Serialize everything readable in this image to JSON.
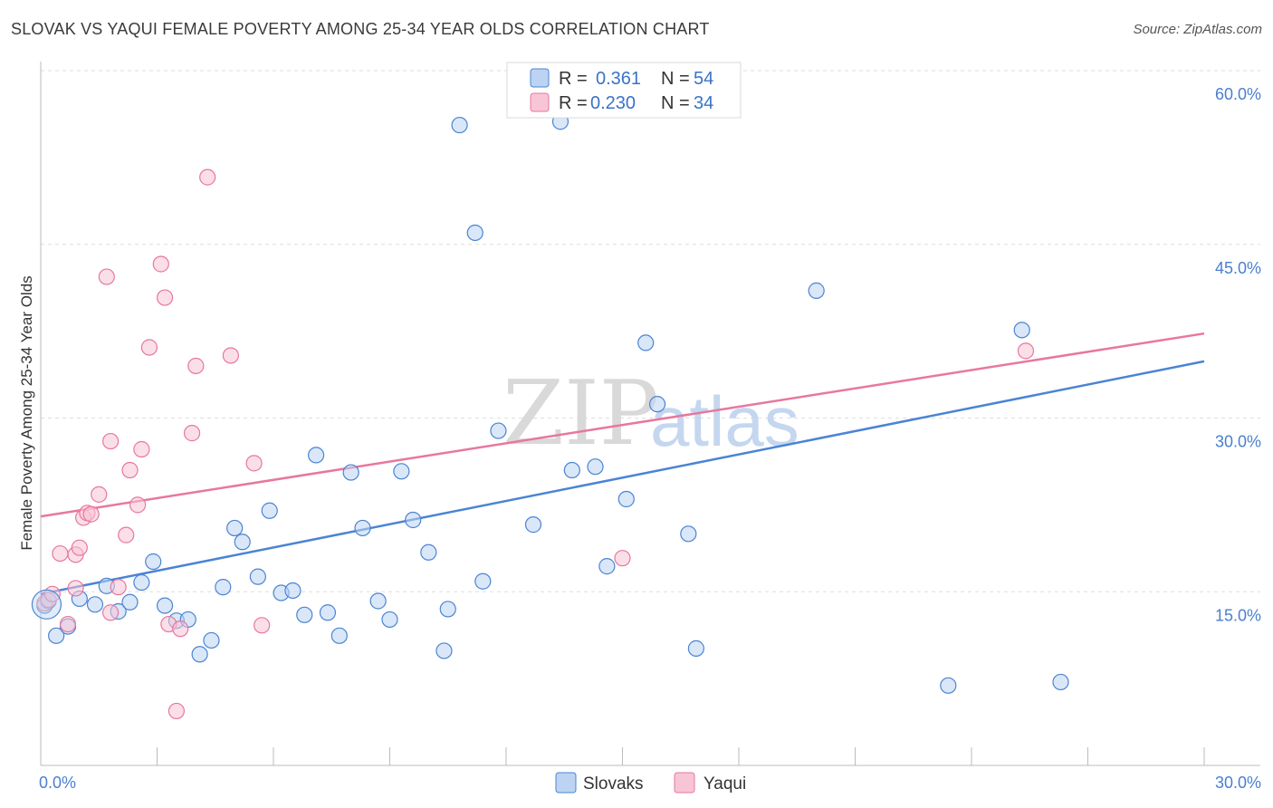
{
  "title": "SLOVAK VS YAQUI FEMALE POVERTY AMONG 25-34 YEAR OLDS CORRELATION CHART",
  "source": "Source: ZipAtlas.com",
  "watermark": {
    "zip": "ZIP",
    "atlas": "atlas"
  },
  "legend": {
    "r_label": "R =",
    "n_label": "N =",
    "rows": [
      {
        "series": "Slovaks",
        "r": "0.361",
        "n": "54"
      },
      {
        "series": "Yaqui",
        "r": "0.230",
        "n": "34"
      }
    ]
  },
  "chart_data": {
    "type": "scatter",
    "title": "SLOVAK VS YAQUI FEMALE POVERTY AMONG 25-34 YEAR OLDS CORRELATION CHART",
    "xlabel": "",
    "ylabel": "Female Poverty Among 25-34 Year Olds",
    "xlim": [
      0,
      30
    ],
    "ylim": [
      0,
      60
    ],
    "x_tick_labels": [
      "0.0%",
      "30.0%"
    ],
    "y_ticks": [
      15,
      30,
      45,
      60
    ],
    "y_tick_labels": [
      "15.0%",
      "30.0%",
      "45.0%",
      "60.0%"
    ],
    "colors": {
      "Slovaks": "#4a84d4",
      "Yaqui": "#e8779e",
      "slovak_fill": "#bcd4f2",
      "yaqui_fill": "#f7c5d6"
    },
    "series": [
      {
        "name": "Slovaks",
        "points": [
          [
            0.1,
            13.8
          ],
          [
            0.2,
            14.2
          ],
          [
            0.4,
            11.2
          ],
          [
            0.7,
            12.0
          ],
          [
            1.0,
            14.4
          ],
          [
            1.4,
            13.9
          ],
          [
            1.7,
            15.5
          ],
          [
            2.0,
            13.3
          ],
          [
            2.3,
            14.1
          ],
          [
            2.6,
            15.8
          ],
          [
            2.9,
            17.6
          ],
          [
            3.2,
            13.8
          ],
          [
            3.5,
            12.5
          ],
          [
            3.8,
            12.6
          ],
          [
            4.1,
            9.6
          ],
          [
            4.4,
            10.8
          ],
          [
            4.7,
            15.4
          ],
          [
            5.0,
            20.5
          ],
          [
            5.2,
            19.3
          ],
          [
            5.6,
            16.3
          ],
          [
            5.9,
            22.0
          ],
          [
            6.2,
            14.9
          ],
          [
            6.5,
            15.1
          ],
          [
            6.8,
            13.0
          ],
          [
            7.1,
            26.8
          ],
          [
            7.4,
            13.2
          ],
          [
            7.7,
            11.2
          ],
          [
            8.0,
            25.3
          ],
          [
            8.3,
            20.5
          ],
          [
            8.7,
            14.2
          ],
          [
            9.0,
            12.6
          ],
          [
            9.3,
            25.4
          ],
          [
            9.6,
            21.2
          ],
          [
            10.0,
            18.4
          ],
          [
            10.4,
            9.9
          ],
          [
            10.5,
            13.5
          ],
          [
            10.8,
            55.3
          ],
          [
            11.2,
            46.0
          ],
          [
            11.4,
            15.9
          ],
          [
            11.8,
            28.9
          ],
          [
            12.7,
            20.8
          ],
          [
            13.4,
            55.6
          ],
          [
            13.7,
            25.5
          ],
          [
            14.3,
            25.8
          ],
          [
            14.6,
            17.2
          ],
          [
            15.1,
            23.0
          ],
          [
            15.6,
            36.5
          ],
          [
            15.9,
            31.2
          ],
          [
            16.7,
            20.0
          ],
          [
            16.9,
            10.1
          ],
          [
            20.0,
            41.0
          ],
          [
            23.4,
            6.9
          ],
          [
            25.3,
            37.6
          ],
          [
            26.3,
            7.2
          ]
        ]
      },
      {
        "name": "Yaqui",
        "points": [
          [
            0.1,
            14.0
          ],
          [
            0.2,
            14.3
          ],
          [
            0.3,
            14.8
          ],
          [
            0.5,
            18.3
          ],
          [
            0.7,
            12.2
          ],
          [
            0.9,
            18.2
          ],
          [
            1.0,
            18.8
          ],
          [
            1.1,
            21.4
          ],
          [
            1.2,
            21.8
          ],
          [
            1.3,
            21.7
          ],
          [
            1.5,
            23.4
          ],
          [
            1.7,
            42.2
          ],
          [
            1.8,
            28.0
          ],
          [
            2.0,
            15.4
          ],
          [
            2.2,
            19.9
          ],
          [
            2.3,
            25.5
          ],
          [
            2.5,
            22.5
          ],
          [
            2.6,
            27.3
          ],
          [
            2.8,
            36.1
          ],
          [
            3.1,
            43.3
          ],
          [
            3.2,
            40.4
          ],
          [
            3.3,
            12.2
          ],
          [
            3.5,
            4.7
          ],
          [
            3.6,
            11.8
          ],
          [
            3.9,
            28.7
          ],
          [
            4.0,
            34.5
          ],
          [
            4.3,
            50.8
          ],
          [
            4.9,
            35.4
          ],
          [
            5.5,
            26.1
          ],
          [
            5.7,
            12.1
          ],
          [
            15.0,
            17.9
          ],
          [
            25.4,
            35.8
          ],
          [
            0.9,
            15.3
          ],
          [
            1.8,
            13.2
          ]
        ]
      }
    ],
    "trendlines": [
      {
        "series": "Slovaks",
        "x": [
          0,
          30
        ],
        "y": [
          14.8,
          34.9
        ]
      },
      {
        "series": "Yaqui",
        "x": [
          0,
          30
        ],
        "y": [
          21.5,
          37.3
        ]
      }
    ]
  }
}
